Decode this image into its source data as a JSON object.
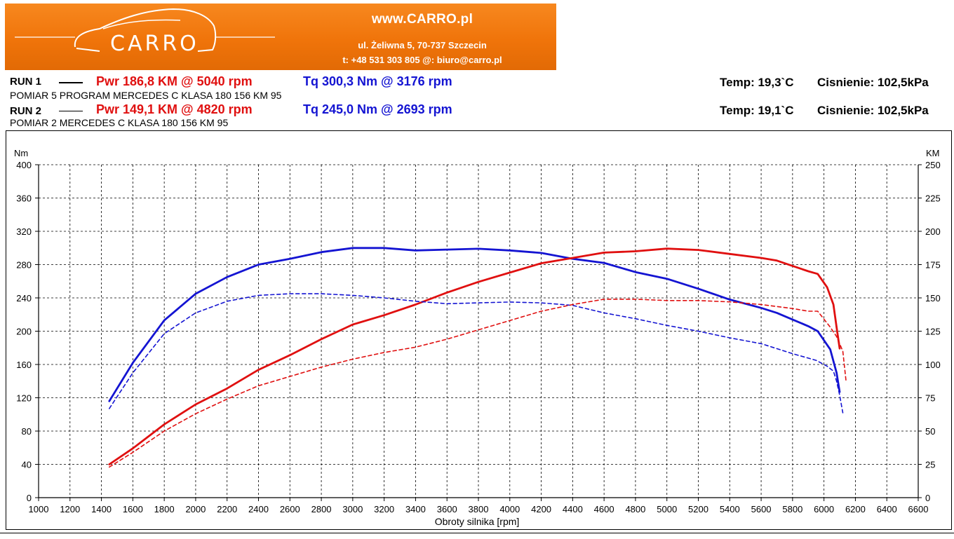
{
  "header": {
    "site": "www.CARRO.pl",
    "address": "ul. Żeliwna 5, 70-737 Szczecin",
    "contact": "t: +48 531 303 805    @: biuro@carro.pl",
    "logo_text": "CARRO"
  },
  "runs": [
    {
      "label": "RUN 1",
      "pwr": "Pwr  186,8 KM @ 5040 rpm",
      "tq": "Tq 300,3 Nm @ 3176 rpm",
      "description": "POMIAR 5 PROGRAM MERCEDES C KLASA 180 156 KM 95",
      "temp": "Temp: 19,3`C",
      "pressure": "Cisnienie: 102,5kPa"
    },
    {
      "label": "RUN 2",
      "pwr": "Pwr  149,1 KM @ 4820 rpm",
      "tq": "Tq 245,0 Nm @ 2693 rpm",
      "description": "POMIAR 2 MERCEDES C KLASA 180 156 KM 95",
      "temp": "Temp: 19,1`C",
      "pressure": "Cisnienie: 102,5kPa"
    }
  ],
  "colors": {
    "power": "#e01010",
    "torque": "#1414d2",
    "banner": "#f07a10"
  },
  "chart_data": {
    "type": "line",
    "xlabel": "Obroty silnika [rpm]",
    "ylabel_left": "Nm",
    "ylabel_right": "KM",
    "xlim": [
      1000,
      6600
    ],
    "ylim_left": [
      0,
      400
    ],
    "ylim_right": [
      0,
      250
    ],
    "x_ticks": [
      1000,
      1200,
      1400,
      1600,
      1800,
      2000,
      2200,
      2400,
      2600,
      2800,
      3000,
      3200,
      3400,
      3600,
      3800,
      4000,
      4200,
      4400,
      4600,
      4800,
      5000,
      5200,
      5400,
      5600,
      5800,
      6000,
      6200,
      6400,
      6600
    ],
    "y_ticks_left": [
      0,
      40,
      80,
      120,
      160,
      200,
      240,
      280,
      320,
      360,
      400
    ],
    "y_ticks_right": [
      0,
      25,
      50,
      75,
      100,
      125,
      150,
      175,
      200,
      225,
      250
    ],
    "grid": true,
    "series": [
      {
        "name": "Tq RUN 1",
        "axis": "left",
        "style": "solid",
        "color": "#1414d2",
        "x": [
          1450,
          1600,
          1800,
          2000,
          2200,
          2400,
          2600,
          2800,
          3000,
          3200,
          3400,
          3600,
          3800,
          4000,
          4200,
          4400,
          4600,
          4800,
          5000,
          5200,
          5400,
          5600,
          5700,
          5800,
          5900,
          5960,
          6040,
          6080,
          6100
        ],
        "y": [
          116,
          162,
          213,
          245,
          265,
          280,
          287,
          295,
          300,
          300,
          297,
          298,
          299,
          297,
          294,
          287,
          282,
          271,
          263,
          251,
          238,
          228,
          222,
          214,
          206,
          200,
          178,
          150,
          127
        ]
      },
      {
        "name": "Pwr RUN 1",
        "axis": "right",
        "style": "solid",
        "color": "#e01010",
        "x": [
          1450,
          1600,
          1800,
          2000,
          2200,
          2400,
          2600,
          2800,
          3000,
          3200,
          3400,
          3600,
          3800,
          4000,
          4200,
          4400,
          4600,
          4800,
          5000,
          5200,
          5400,
          5600,
          5700,
          5800,
          5900,
          5960,
          6020,
          6060,
          6080,
          6100
        ],
        "y": [
          25,
          37,
          55,
          70,
          82,
          96,
          107,
          119,
          130,
          137,
          145,
          154,
          162,
          169,
          176,
          180,
          184,
          185,
          187,
          186,
          183,
          180,
          178,
          174,
          170,
          168,
          158,
          145,
          128,
          112
        ]
      },
      {
        "name": "Tq RUN 2",
        "axis": "left",
        "style": "dashed",
        "color": "#1414d2",
        "x": [
          1450,
          1600,
          1800,
          2000,
          2200,
          2400,
          2600,
          2800,
          3000,
          3200,
          3400,
          3600,
          3800,
          4000,
          4200,
          4400,
          4600,
          4800,
          5000,
          5200,
          5400,
          5600,
          5800,
          5950,
          6020,
          6060,
          6080,
          6100,
          6120
        ],
        "y": [
          107,
          150,
          197,
          222,
          236,
          243,
          245,
          245,
          243,
          240,
          236,
          233,
          234,
          235,
          234,
          231,
          222,
          215,
          207,
          200,
          192,
          185,
          173,
          165,
          158,
          152,
          140,
          123,
          102
        ]
      },
      {
        "name": "Pwr RUN 2",
        "axis": "right",
        "style": "dashed",
        "color": "#e01010",
        "x": [
          1450,
          1600,
          1800,
          2000,
          2200,
          2400,
          2600,
          2800,
          3000,
          3200,
          3400,
          3600,
          3800,
          4000,
          4200,
          4400,
          4600,
          4800,
          5000,
          5200,
          5400,
          5600,
          5800,
          5900,
          5960,
          6040,
          6080,
          6120,
          6140
        ],
        "y": [
          23,
          34,
          50,
          63,
          74,
          84,
          91,
          98,
          104,
          109,
          113,
          119,
          126,
          133,
          140,
          145,
          149,
          149,
          148,
          148,
          147,
          145,
          142,
          140,
          140,
          128,
          121,
          110,
          88
        ]
      }
    ]
  }
}
